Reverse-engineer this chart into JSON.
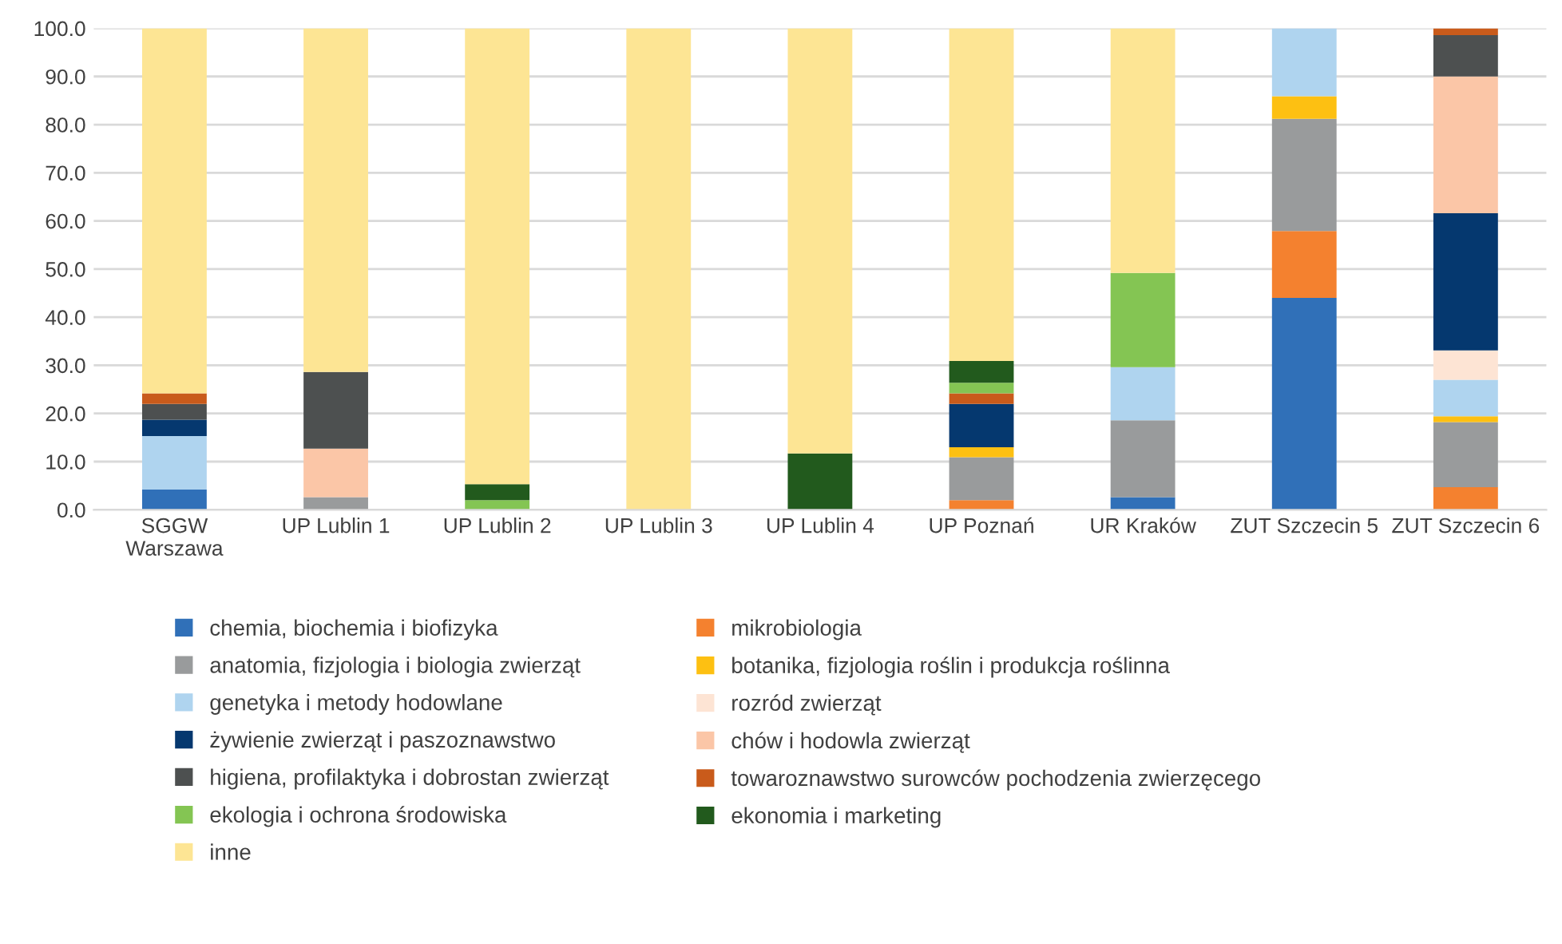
{
  "chart_data": {
    "type": "bar",
    "stacked": true,
    "categories": [
      "SGGW\nWarszawa",
      "UP Lublin 1",
      "UP Lublin 2",
      "UP Lublin 3",
      "UP Lublin 4",
      "UP Poznań",
      "UR Kraków",
      "ZUT Szczecin 5",
      "ZUT Szczecin 6"
    ],
    "ylim": [
      0,
      100
    ],
    "yticks": [
      {
        "value": 0,
        "label": "0.0"
      },
      {
        "value": 10,
        "label": "10.0"
      },
      {
        "value": 20,
        "label": "20.0"
      },
      {
        "value": 30,
        "label": "30.0"
      },
      {
        "value": 40,
        "label": "40.0"
      },
      {
        "value": 50,
        "label": "50.0"
      },
      {
        "value": 60,
        "label": "60.0"
      },
      {
        "value": 70,
        "label": "70.0"
      },
      {
        "value": 80,
        "label": "80.0"
      },
      {
        "value": 90,
        "label": "90.0"
      },
      {
        "value": 100,
        "label": "100.0"
      }
    ],
    "grid": "y",
    "legend": "bottom",
    "series": [
      {
        "name": "chemia, biochemia i biofizyka",
        "color": "#3070b8",
        "values": [
          4.2,
          0,
          0,
          0,
          0,
          0,
          2.6,
          44.0,
          0
        ]
      },
      {
        "name": "mikrobiologia",
        "color": "#f4812f",
        "values": [
          0,
          0,
          0,
          0,
          0,
          2.0,
          0,
          13.9,
          4.7
        ]
      },
      {
        "name": "anatomia, fizjologia i biologia zwierząt",
        "color": "#999b9c",
        "values": [
          0,
          2.6,
          0,
          0,
          0,
          8.9,
          16.0,
          23.3,
          13.5
        ]
      },
      {
        "name": "botanika, fizjologia roślin i produkcja roślinna",
        "color": "#fdc012",
        "values": [
          0,
          0,
          0,
          0,
          0,
          2.1,
          0,
          4.7,
          1.2
        ]
      },
      {
        "name": "genetyka i metody hodowlane",
        "color": "#afd4ef",
        "values": [
          11.1,
          0,
          0,
          0,
          0,
          0,
          11.0,
          14.1,
          7.6
        ]
      },
      {
        "name": "rozród zwierząt",
        "color": "#fde4d4",
        "values": [
          0,
          0,
          0,
          0,
          0,
          0,
          0,
          0,
          6.1
        ]
      },
      {
        "name": "żywienie zwierząt i paszoznawstwo",
        "color": "#05386f",
        "values": [
          3.4,
          0,
          0,
          0,
          0,
          9.0,
          0,
          0,
          28.5
        ]
      },
      {
        "name": "chów i hodowla zwierząt",
        "color": "#fbc6a7",
        "values": [
          0,
          10.1,
          0,
          0,
          0,
          0,
          0,
          0,
          28.4
        ]
      },
      {
        "name": "higiena, profilaktyka i dobrostan zwierząt",
        "color": "#4d5050",
        "values": [
          3.3,
          15.9,
          0,
          0,
          0,
          0,
          0,
          0,
          8.6
        ]
      },
      {
        "name": "towaroznawstwo surowców pochodzenia zwierzęcego",
        "color": "#c95b1b",
        "values": [
          2.2,
          0,
          0,
          0,
          0,
          2.2,
          0,
          0,
          1.4
        ]
      },
      {
        "name": "ekologia i ochrona środowiska",
        "color": "#84c553",
        "values": [
          0,
          0,
          2.0,
          0,
          0,
          2.2,
          19.6,
          0,
          0
        ]
      },
      {
        "name": "ekonomia i marketing",
        "color": "#225a1d",
        "values": [
          0,
          0,
          3.3,
          0,
          11.7,
          4.5,
          0,
          0,
          0
        ]
      },
      {
        "name": "inne",
        "color": "#fde594",
        "values": [
          75.8,
          71.4,
          94.7,
          100,
          88.3,
          69.1,
          50.8,
          0,
          0
        ]
      }
    ]
  }
}
